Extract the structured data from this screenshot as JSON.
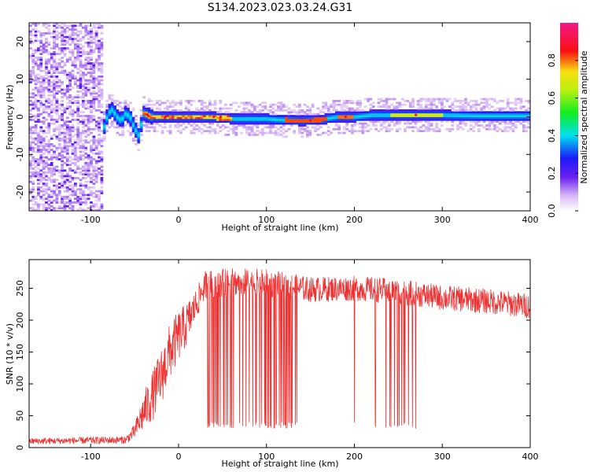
{
  "title": "S134.2023.023.03.24.G31",
  "chart_data": [
    {
      "type": "heatmap",
      "xlabel": "Height of straight line (km)",
      "ylabel": "Frequency (Hz)",
      "xlim": [
        -170,
        400
      ],
      "ylim": [
        -25,
        25
      ],
      "x_ticks": [
        -100,
        0,
        100,
        200,
        300,
        400
      ],
      "y_ticks": [
        -20,
        -10,
        0,
        10,
        20
      ],
      "colorbar": {
        "label": "Normalized spectral amplitude",
        "range": [
          0,
          1
        ],
        "ticks": [
          "0.0",
          "0.2",
          "0.4",
          "0.6",
          "0.8"
        ],
        "tick_values": [
          0.0,
          0.2,
          0.4,
          0.6,
          0.8
        ]
      },
      "ridge": {
        "x": [
          -105,
          -95,
          -85,
          -80,
          -75,
          -70,
          -65,
          -60,
          -55,
          -50,
          -45,
          -40,
          -35,
          -30,
          -20,
          0,
          20,
          40,
          60,
          80,
          100,
          120,
          140,
          160,
          180,
          200,
          220,
          260,
          300,
          340,
          400
        ],
        "y": [
          -9,
          -8,
          -3,
          1,
          2,
          0,
          -1,
          1,
          0,
          -3,
          -5,
          1,
          0.5,
          0,
          0,
          0,
          0,
          0,
          -0.5,
          -0.5,
          -0.5,
          -0.8,
          -1,
          -0.8,
          0,
          0,
          0.5,
          0.5,
          0.5,
          0.3,
          0.3
        ]
      },
      "noise_region": {
        "x_from": -170,
        "x_to": -85
      }
    },
    {
      "type": "line",
      "xlabel": "Height of straight line (km)",
      "ylabel": "SNR (10 * v/v)",
      "xlim": [
        -170,
        400
      ],
      "ylim": [
        0,
        295
      ],
      "x_ticks": [
        -100,
        0,
        100,
        200,
        300,
        400
      ],
      "y_ticks": [
        0,
        50,
        100,
        150,
        200,
        250
      ],
      "color": "#ef3030",
      "envelope": {
        "x": [
          -170,
          -60,
          -50,
          -40,
          -30,
          -20,
          -10,
          0,
          10,
          20,
          30,
          60,
          100,
          150,
          200,
          250,
          300,
          350,
          400
        ],
        "y": [
          10,
          12,
          25,
          55,
          80,
          110,
          150,
          175,
          195,
          225,
          255,
          260,
          258,
          248,
          250,
          245,
          235,
          230,
          222
        ]
      },
      "noise_amplitude": [
        5,
        6,
        12,
        30,
        40,
        45,
        45,
        40,
        35,
        25,
        22,
        22,
        22,
        20,
        20,
        20,
        20,
        20,
        20
      ],
      "dropout_ranges": [
        [
          30,
          135
        ],
        [
          235,
          270
        ]
      ],
      "dropout_level": 35,
      "isolated_dropouts": [
        200,
        224
      ]
    }
  ]
}
